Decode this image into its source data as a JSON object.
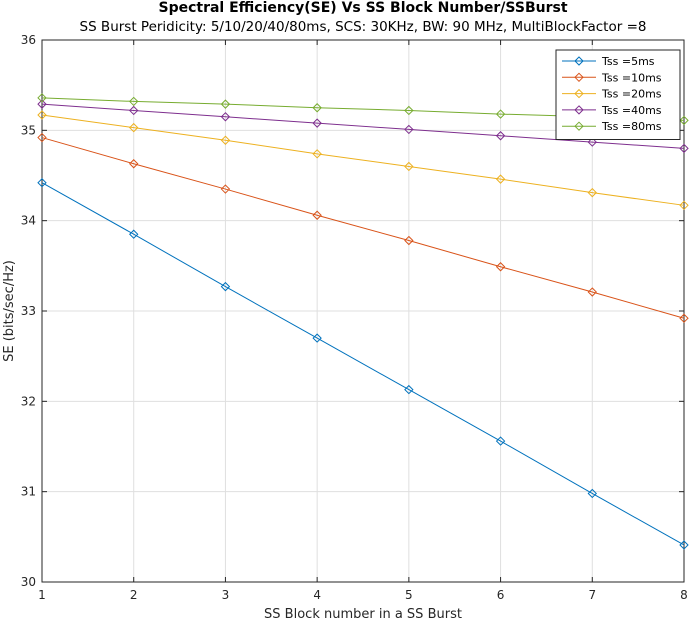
{
  "chart_data": {
    "type": "line",
    "title": "Spectral Efficiency(SE) Vs SS Block Number/SSBurst",
    "subtitle": "SS Burst Peridicity: 5/10/20/40/80ms, SCS: 30KHz, BW: 90 MHz, MultiBlockFactor =8",
    "xlabel": "SS Block number in a SS Burst",
    "ylabel": "SE (bits/sec/Hz)",
    "xlim": [
      1,
      8
    ],
    "ylim": [
      30,
      36
    ],
    "xticks": [
      1,
      2,
      3,
      4,
      5,
      6,
      7,
      8
    ],
    "yticks": [
      30,
      31,
      32,
      33,
      34,
      35,
      36
    ],
    "grid": true,
    "legend_position": "top-right",
    "marker": "diamond",
    "x": [
      1,
      2,
      3,
      4,
      5,
      6,
      7,
      8
    ],
    "series": [
      {
        "name": "Tss =5ms",
        "color": "#0072BD",
        "values": [
          34.42,
          33.85,
          33.27,
          32.7,
          32.13,
          31.56,
          30.98,
          30.41
        ]
      },
      {
        "name": "Tss =10ms",
        "color": "#D95319",
        "values": [
          34.92,
          34.63,
          34.35,
          34.06,
          33.78,
          33.49,
          33.21,
          32.92
        ]
      },
      {
        "name": "Tss =20ms",
        "color": "#EDB120",
        "values": [
          35.17,
          35.03,
          34.89,
          34.74,
          34.6,
          34.46,
          34.31,
          34.17
        ]
      },
      {
        "name": "Tss =40ms",
        "color": "#7E2F8E",
        "values": [
          35.29,
          35.22,
          35.15,
          35.08,
          35.01,
          34.94,
          34.87,
          34.8
        ]
      },
      {
        "name": "Tss =80ms",
        "color": "#77AC30",
        "values": [
          35.36,
          35.32,
          35.29,
          35.25,
          35.22,
          35.18,
          35.15,
          35.11
        ]
      }
    ]
  }
}
